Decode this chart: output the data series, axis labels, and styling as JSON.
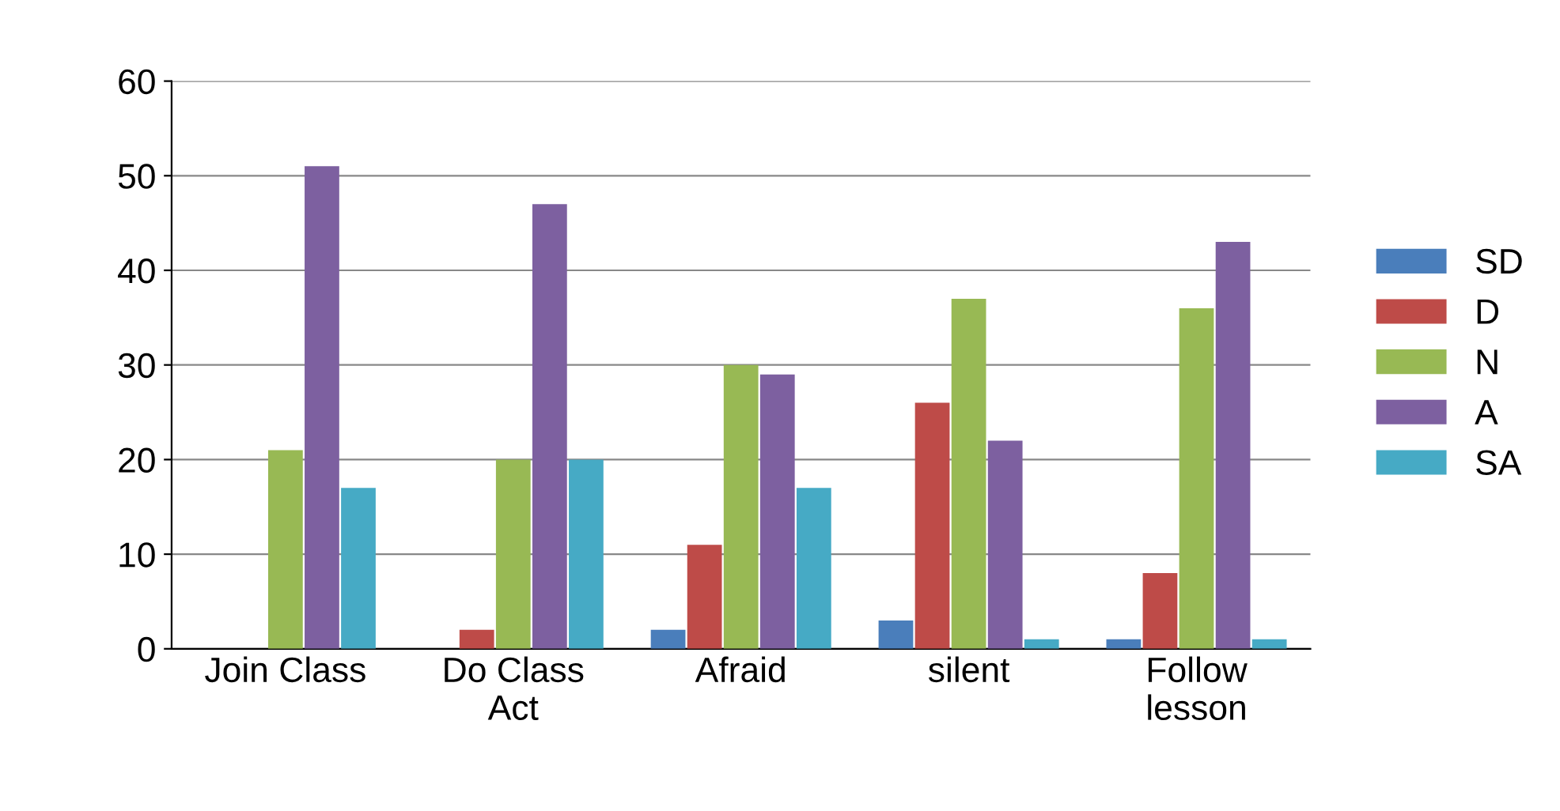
{
  "chart_data": {
    "type": "bar",
    "categories": [
      "Join Class",
      "Do Class\nAct",
      "Afraid",
      "silent",
      "Follow\nlesson"
    ],
    "series": [
      {
        "name": "SD",
        "color": "#4a7ebb",
        "values": [
          0,
          0,
          2,
          3,
          1
        ]
      },
      {
        "name": "D",
        "color": "#be4b48",
        "values": [
          0,
          2,
          11,
          26,
          8
        ]
      },
      {
        "name": "N",
        "color": "#98b954",
        "values": [
          21,
          20,
          30,
          37,
          36
        ]
      },
      {
        "name": "A",
        "color": "#7d60a0",
        "values": [
          51,
          47,
          29,
          22,
          43
        ]
      },
      {
        "name": "SA",
        "color": "#46aac5",
        "values": [
          17,
          20,
          17,
          1,
          1
        ]
      }
    ],
    "ylim": [
      0,
      60
    ],
    "yticks": [
      0,
      10,
      20,
      30,
      40,
      50,
      60
    ],
    "grid": "y",
    "legend": "right"
  }
}
